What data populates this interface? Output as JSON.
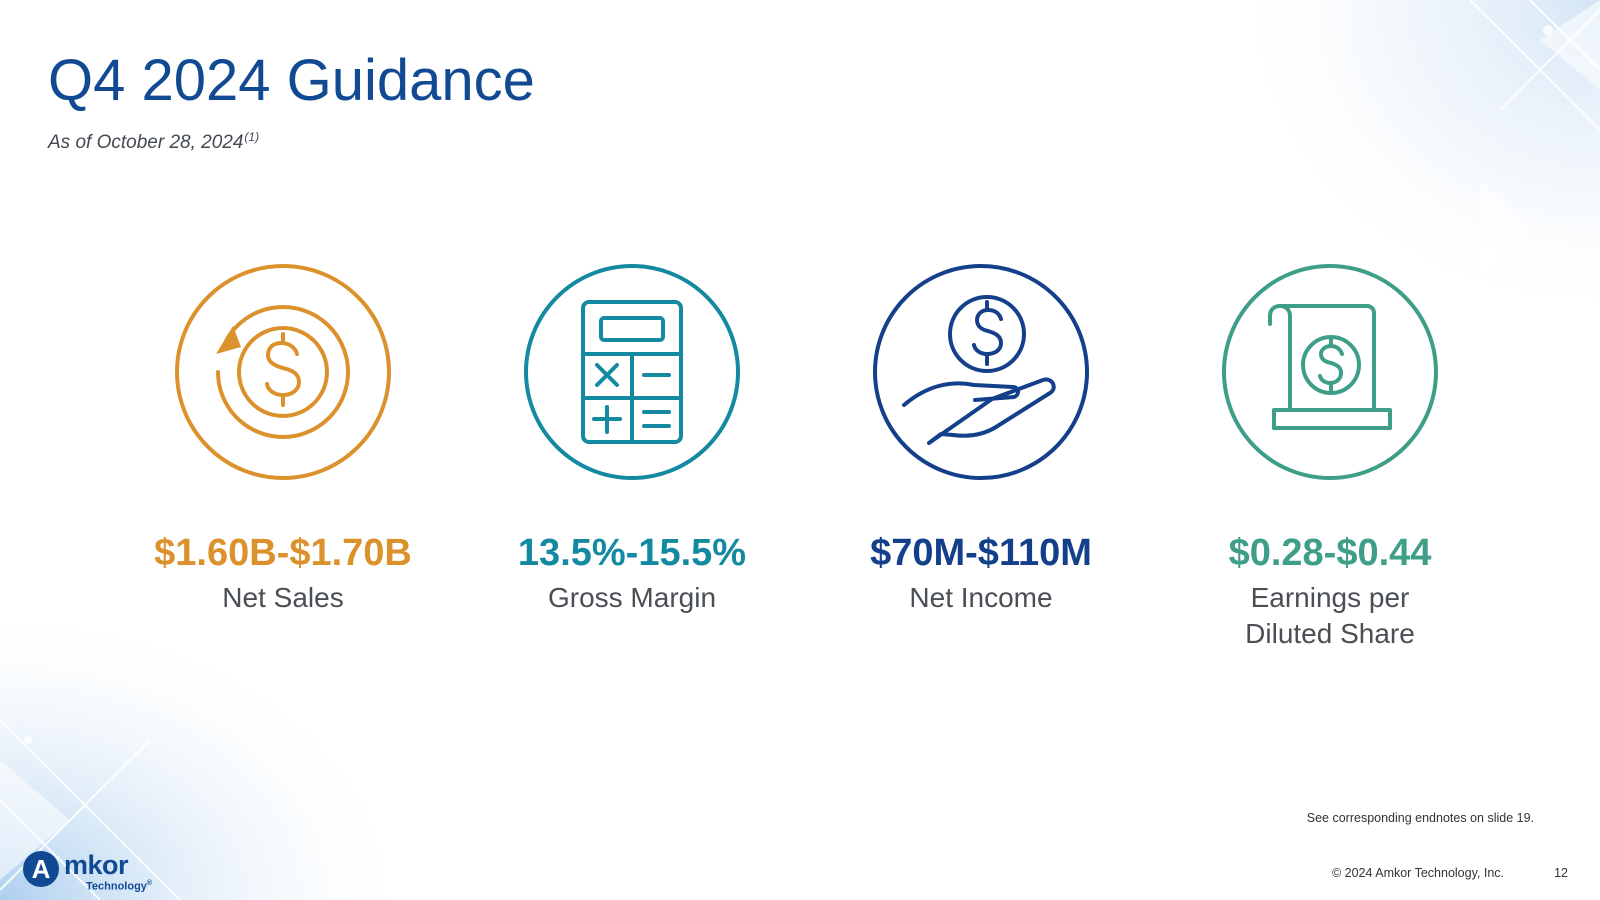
{
  "slide": {
    "title": "Q4 2024 Guidance",
    "subtitle": "As of October 28, 2024",
    "subtitle_footnote": "(1)"
  },
  "metrics": [
    {
      "value": "$1.60B-$1.70B",
      "label": "Net Sales",
      "color": "#dc922c",
      "icon": "dollar-cycle-icon"
    },
    {
      "value": "13.5%-15.5%",
      "label": "Gross Margin",
      "color": "#138aa1",
      "icon": "calculator-icon"
    },
    {
      "value": "$70M-$110M",
      "label": "Net Income",
      "color": "#133f8b",
      "icon": "hand-coin-icon"
    },
    {
      "value": "$0.28-$0.44",
      "label": "Earnings per\nDiluted Share",
      "color": "#3e9e88",
      "icon": "dollar-scroll-icon"
    }
  ],
  "footer": {
    "endnote": "See corresponding endnotes on slide 19.",
    "copyright": "© 2024 Amkor Technology, Inc.",
    "page_number": "12"
  },
  "logo": {
    "letter": "A",
    "word": "mkor",
    "subtext": "Technology",
    "mark": "®"
  },
  "colors": {
    "title": "#114a92",
    "brand": "#114a92"
  }
}
